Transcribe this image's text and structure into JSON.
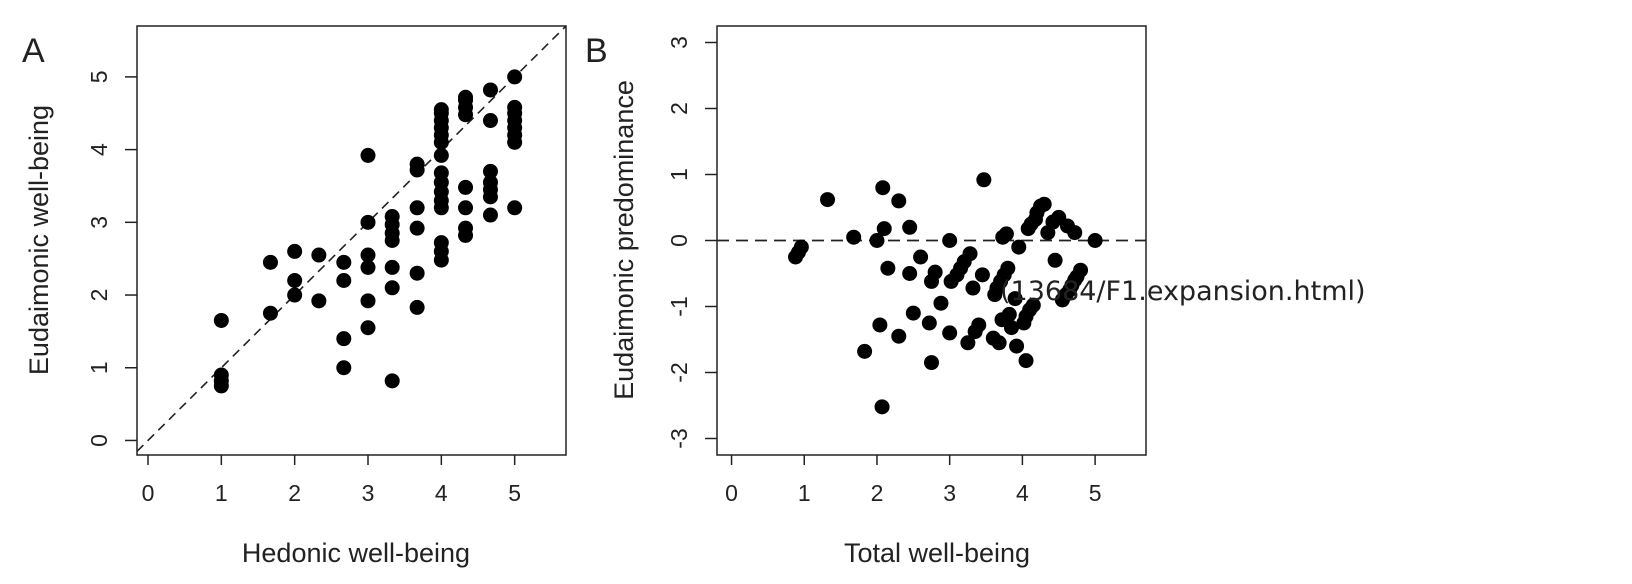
{
  "caption_link": "(13684/F1.expansion.html)",
  "chart_data": [
    {
      "type": "scatter",
      "panel_label": "A",
      "xlabel": "Hedonic well-being",
      "ylabel": "Eudaimonic well-being",
      "xlim": [
        -0.15,
        5.7
      ],
      "ylim": [
        -0.2,
        5.7
      ],
      "xticks": [
        "0",
        "1",
        "2",
        "3",
        "4",
        "5"
      ],
      "yticks": [
        "0",
        "1",
        "2",
        "3",
        "4",
        "5"
      ],
      "reference_line": "y = x",
      "points": [
        [
          1,
          0.75
        ],
        [
          1,
          0.82
        ],
        [
          1,
          0.9
        ],
        [
          1,
          1.65
        ],
        [
          1.67,
          1.75
        ],
        [
          1.67,
          2.45
        ],
        [
          2,
          2.0
        ],
        [
          2,
          2.2
        ],
        [
          2,
          2.6
        ],
        [
          2.33,
          1.92
        ],
        [
          2.33,
          2.55
        ],
        [
          2.67,
          1.0
        ],
        [
          2.67,
          1.4
        ],
        [
          2.67,
          2.2
        ],
        [
          2.67,
          2.45
        ],
        [
          3,
          1.55
        ],
        [
          3,
          1.92
        ],
        [
          3,
          2.38
        ],
        [
          3,
          2.55
        ],
        [
          3,
          3.0
        ],
        [
          3,
          3.92
        ],
        [
          3.33,
          0.82
        ],
        [
          3.33,
          2.1
        ],
        [
          3.33,
          2.38
        ],
        [
          3.33,
          2.75
        ],
        [
          3.33,
          2.85
        ],
        [
          3.33,
          2.97
        ],
        [
          3.33,
          3.08
        ],
        [
          3.67,
          1.83
        ],
        [
          3.67,
          2.3
        ],
        [
          3.67,
          2.92
        ],
        [
          3.67,
          3.2
        ],
        [
          3.67,
          3.72
        ],
        [
          3.67,
          3.8
        ],
        [
          4,
          2.48
        ],
        [
          4,
          2.6
        ],
        [
          4,
          2.72
        ],
        [
          4,
          3.2
        ],
        [
          4,
          3.3
        ],
        [
          4,
          3.42
        ],
        [
          4,
          3.55
        ],
        [
          4,
          3.68
        ],
        [
          4,
          3.92
        ],
        [
          4,
          4.1
        ],
        [
          4,
          4.2
        ],
        [
          4,
          4.3
        ],
        [
          4,
          4.4
        ],
        [
          4,
          4.5
        ],
        [
          4,
          4.55
        ],
        [
          4.33,
          2.82
        ],
        [
          4.33,
          2.92
        ],
        [
          4.33,
          3.2
        ],
        [
          4.33,
          3.48
        ],
        [
          4.33,
          4.48
        ],
        [
          4.33,
          4.58
        ],
        [
          4.33,
          4.68
        ],
        [
          4.33,
          4.72
        ],
        [
          4.67,
          3.1
        ],
        [
          4.67,
          3.35
        ],
        [
          4.67,
          3.45
        ],
        [
          4.67,
          3.55
        ],
        [
          4.67,
          3.7
        ],
        [
          4.67,
          4.4
        ],
        [
          4.67,
          4.82
        ],
        [
          5,
          3.2
        ],
        [
          5,
          4.1
        ],
        [
          5,
          4.2
        ],
        [
          5,
          4.3
        ],
        [
          5,
          4.4
        ],
        [
          5,
          4.5
        ],
        [
          5,
          4.58
        ],
        [
          5,
          5.0
        ]
      ]
    },
    {
      "type": "scatter",
      "panel_label": "B",
      "xlabel": "Total well-being",
      "ylabel": "Eudaimonic predominance",
      "xlim": [
        -0.2,
        5.7
      ],
      "ylim": [
        -3.25,
        3.25
      ],
      "xticks": [
        "0",
        "1",
        "2",
        "3",
        "4",
        "5"
      ],
      "yticks": [
        "-3",
        "-2",
        "-1",
        "0",
        "1",
        "2",
        "3"
      ],
      "reference_line": "y = 0",
      "points": [
        [
          0.88,
          -0.25
        ],
        [
          0.92,
          -0.18
        ],
        [
          0.96,
          -0.1
        ],
        [
          1.32,
          0.62
        ],
        [
          1.68,
          0.05
        ],
        [
          1.83,
          -1.68
        ],
        [
          2.0,
          0.0
        ],
        [
          2.04,
          -1.28
        ],
        [
          2.07,
          -2.52
        ],
        [
          2.08,
          0.8
        ],
        [
          2.1,
          0.18
        ],
        [
          2.15,
          -0.42
        ],
        [
          2.3,
          0.6
        ],
        [
          2.3,
          -1.45
        ],
        [
          2.45,
          -0.5
        ],
        [
          2.45,
          0.2
        ],
        [
          2.5,
          -1.1
        ],
        [
          2.6,
          -0.25
        ],
        [
          2.72,
          -1.25
        ],
        [
          2.75,
          -1.85
        ],
        [
          2.75,
          -0.62
        ],
        [
          2.8,
          -0.48
        ],
        [
          2.88,
          -0.95
        ],
        [
          3.0,
          0.0
        ],
        [
          3.0,
          -1.4
        ],
        [
          3.02,
          -0.62
        ],
        [
          3.1,
          -0.52
        ],
        [
          3.15,
          -0.42
        ],
        [
          3.2,
          -0.32
        ],
        [
          3.25,
          -1.55
        ],
        [
          3.28,
          -0.2
        ],
        [
          3.32,
          -0.72
        ],
        [
          3.35,
          -1.38
        ],
        [
          3.4,
          -1.28
        ],
        [
          3.45,
          -0.52
        ],
        [
          3.47,
          0.92
        ],
        [
          3.6,
          -1.48
        ],
        [
          3.62,
          -0.82
        ],
        [
          3.65,
          -0.72
        ],
        [
          3.68,
          -1.55
        ],
        [
          3.7,
          -0.62
        ],
        [
          3.72,
          -1.2
        ],
        [
          3.73,
          0.05
        ],
        [
          3.75,
          -0.52
        ],
        [
          3.78,
          0.1
        ],
        [
          3.8,
          -0.42
        ],
        [
          3.82,
          -1.12
        ],
        [
          3.85,
          -1.32
        ],
        [
          3.9,
          -0.88
        ],
        [
          3.92,
          -1.6
        ],
        [
          3.95,
          -0.1
        ],
        [
          4.02,
          -1.25
        ],
        [
          4.05,
          -1.82
        ],
        [
          4.05,
          -1.15
        ],
        [
          4.08,
          0.18
        ],
        [
          4.1,
          -1.05
        ],
        [
          4.12,
          0.25
        ],
        [
          4.15,
          -0.98
        ],
        [
          4.18,
          0.32
        ],
        [
          4.2,
          0.42
        ],
        [
          4.25,
          0.52
        ],
        [
          4.3,
          0.55
        ],
        [
          4.35,
          0.12
        ],
        [
          4.42,
          0.28
        ],
        [
          4.45,
          -0.3
        ],
        [
          4.5,
          0.35
        ],
        [
          4.55,
          -0.9
        ],
        [
          4.6,
          -0.82
        ],
        [
          4.62,
          0.22
        ],
        [
          4.65,
          -0.75
        ],
        [
          4.68,
          -0.68
        ],
        [
          4.72,
          0.12
        ],
        [
          4.72,
          -0.6
        ],
        [
          4.75,
          -0.55
        ],
        [
          4.8,
          -0.45
        ],
        [
          5.0,
          0.0
        ]
      ]
    }
  ]
}
